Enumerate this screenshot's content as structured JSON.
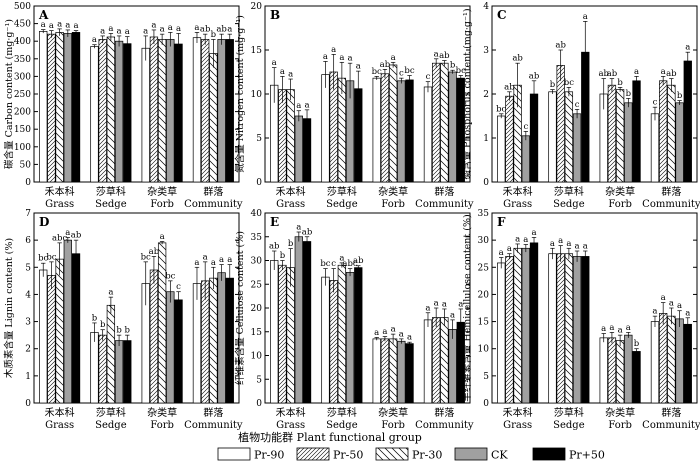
{
  "chart_data": [
    {
      "panel": "A",
      "type": "bar",
      "ylabel": "碳含量 Carbon content (mg·g⁻¹)",
      "ylim": [
        0,
        500
      ],
      "yticks": [
        0,
        50,
        100,
        150,
        200,
        250,
        300,
        350,
        400,
        450,
        500
      ],
      "categories": [
        "禾本科 Grass",
        "莎草科 Sedge",
        "杂类草 Forb",
        "群落 Community"
      ],
      "series": [
        {
          "name": "Pr-90",
          "values": [
            428,
            385,
            380,
            410
          ],
          "errors": [
            5,
            5,
            35,
            15
          ],
          "letters": [
            "a",
            "a",
            "a",
            "a"
          ]
        },
        {
          "name": "Pr-50",
          "values": [
            420,
            405,
            412,
            405
          ],
          "errors": [
            10,
            10,
            20,
            15
          ],
          "letters": [
            "a",
            "a",
            "a",
            "ab"
          ]
        },
        {
          "name": "Pr-30",
          "values": [
            425,
            412,
            405,
            365
          ],
          "errors": [
            10,
            10,
            15,
            40
          ],
          "letters": [
            "a",
            "a",
            "a",
            "b"
          ]
        },
        {
          "name": "CK",
          "values": [
            422,
            400,
            405,
            405
          ],
          "errors": [
            10,
            15,
            20,
            15
          ],
          "letters": [
            "a",
            "a",
            "a",
            "ab"
          ]
        },
        {
          "name": "Pr+50",
          "values": [
            425,
            393,
            392,
            405
          ],
          "errors": [
            5,
            20,
            30,
            15
          ],
          "letters": [
            "a",
            "a",
            "a",
            "a"
          ]
        }
      ]
    },
    {
      "panel": "B",
      "type": "bar",
      "ylabel": "氮含量 Nitrogen content (mg·g⁻¹)",
      "ylim": [
        0,
        20
      ],
      "yticks": [
        0,
        5,
        10,
        15,
        20
      ],
      "categories": [
        "禾本科 Grass",
        "莎草科 Sedge",
        "杂类草 Forb",
        "群落 Community"
      ],
      "series": [
        {
          "name": "Pr-90",
          "values": [
            11.0,
            12.2,
            11.8,
            10.8
          ],
          "errors": [
            2.0,
            1.5,
            0.2,
            0.6
          ],
          "letters": [
            "a",
            "a",
            "bc",
            "c"
          ]
        },
        {
          "name": "Pr-50",
          "values": [
            10.5,
            12.5,
            12.3,
            13.5
          ],
          "errors": [
            1.5,
            2.0,
            0.5,
            0.5
          ],
          "letters": [
            "a",
            "a",
            "ab",
            "a"
          ]
        },
        {
          "name": "Pr-30",
          "values": [
            10.5,
            11.8,
            13.3,
            13.5
          ],
          "errors": [
            1.2,
            1.8,
            0.3,
            0.3
          ],
          "letters": [
            "a",
            "a",
            "a",
            "ab"
          ]
        },
        {
          "name": "CK",
          "values": [
            7.5,
            11.5,
            11.5,
            12.5
          ],
          "errors": [
            0.6,
            2.0,
            0.3,
            0.2
          ],
          "letters": [
            "a",
            "a",
            "c",
            "b"
          ]
        },
        {
          "name": "Pr+50",
          "values": [
            7.2,
            10.6,
            11.6,
            11.8
          ],
          "errors": [
            1.0,
            2.0,
            0.5,
            0.3
          ],
          "letters": [
            "a",
            "a",
            "bc",
            "bc"
          ]
        }
      ]
    },
    {
      "panel": "C",
      "type": "bar",
      "ylabel": "磷含量 Phosphorus content (mg·g⁻¹)",
      "ylim": [
        0,
        4
      ],
      "yticks": [
        0,
        1,
        2,
        3,
        4
      ],
      "categories": [
        "禾本科 Grass",
        "莎草科 Sedge",
        "杂类草 Forb",
        "群落 Community"
      ],
      "series": [
        {
          "name": "Pr-90",
          "values": [
            1.5,
            2.05,
            2.0,
            1.55
          ],
          "errors": [
            0.05,
            0.05,
            0.35,
            0.15
          ],
          "letters": [
            "bc",
            "b",
            "ab",
            "c"
          ]
        },
        {
          "name": "Pr-50",
          "values": [
            1.95,
            2.65,
            2.2,
            2.3
          ],
          "errors": [
            0.1,
            0.35,
            0.15,
            0.1
          ],
          "letters": [
            "ab",
            "ab",
            "ab",
            "a"
          ]
        },
        {
          "name": "Pr-30",
          "values": [
            2.2,
            2.05,
            2.1,
            2.2
          ],
          "errors": [
            0.5,
            0.1,
            0.05,
            0.15
          ],
          "letters": [
            "ab",
            "bc",
            "b",
            "ab"
          ]
        },
        {
          "name": "CK",
          "values": [
            1.05,
            1.55,
            1.8,
            1.8
          ],
          "errors": [
            0.1,
            0.1,
            0.1,
            0.05
          ],
          "letters": [
            "c",
            "c",
            "b",
            "b"
          ]
        },
        {
          "name": "Pr+50",
          "values": [
            2.0,
            2.95,
            2.3,
            2.75
          ],
          "errors": [
            0.3,
            0.7,
            0.1,
            0.2
          ],
          "letters": [
            "ab",
            "a",
            "a",
            "a"
          ]
        }
      ]
    },
    {
      "panel": "D",
      "type": "bar",
      "ylabel": "木质素含量 Lignin content (%)",
      "ylim": [
        0,
        7
      ],
      "yticks": [
        0,
        1,
        2,
        3,
        4,
        5,
        6,
        7
      ],
      "categories": [
        "禾本科 Grass",
        "莎草科 Sedge",
        "杂类草 Forb",
        "群落 Community"
      ],
      "series": [
        {
          "name": "Pr-90",
          "values": [
            4.9,
            2.6,
            4.4,
            4.4
          ],
          "errors": [
            0.25,
            0.35,
            0.8,
            0.6
          ],
          "letters": [
            "bc",
            "b",
            "bc",
            "a"
          ]
        },
        {
          "name": "Pr-50",
          "values": [
            4.7,
            2.5,
            4.9,
            4.5
          ],
          "errors": [
            0.5,
            0.2,
            0.5,
            0.7
          ],
          "letters": [
            "bc",
            "b",
            "ab",
            "a"
          ]
        },
        {
          "name": "Pr-30",
          "values": [
            5.3,
            3.6,
            5.9,
            4.6
          ],
          "errors": [
            0.6,
            0.3,
            0.05,
            0.4
          ],
          "letters": [
            "abc",
            "a",
            "a",
            "a"
          ]
        },
        {
          "name": "CK",
          "values": [
            6.0,
            2.3,
            4.1,
            4.8
          ],
          "errors": [
            0.1,
            0.2,
            0.4,
            0.3
          ],
          "letters": [
            "a",
            "b",
            "bc",
            "a"
          ]
        },
        {
          "name": "Pr+50",
          "values": [
            5.5,
            2.3,
            3.8,
            4.6
          ],
          "errors": [
            0.5,
            0.2,
            0.3,
            0.5
          ],
          "letters": [
            "ab",
            "b",
            "c",
            "a"
          ]
        }
      ]
    },
    {
      "panel": "E",
      "type": "bar",
      "ylabel": "纤维素含量 Cellulose content (%)",
      "ylim": [
        0,
        40
      ],
      "yticks": [
        0,
        5,
        10,
        15,
        20,
        25,
        30,
        35,
        40
      ],
      "categories": [
        "禾本科 Grass",
        "莎草科 Sedge",
        "杂类草 Forb",
        "群落 Community"
      ],
      "series": [
        {
          "name": "Pr-90",
          "values": [
            30.0,
            26.5,
            13.5,
            17.5
          ],
          "errors": [
            2.0,
            1.8,
            0.3,
            1.5
          ],
          "letters": [
            "ab",
            "bc",
            "a",
            "a"
          ]
        },
        {
          "name": "Pr-50",
          "values": [
            29.0,
            25.8,
            13.5,
            18.0
          ],
          "errors": [
            1.0,
            2.5,
            0.5,
            2.0
          ],
          "letters": [
            "b",
            "c",
            "a",
            "a"
          ]
        },
        {
          "name": "Pr-30",
          "values": [
            28.5,
            29.0,
            13.5,
            18.0
          ],
          "errors": [
            4.0,
            0.5,
            1.0,
            1.8
          ],
          "letters": [
            "b",
            "a",
            "a",
            "a"
          ]
        },
        {
          "name": "CK",
          "values": [
            35.0,
            27.5,
            13.0,
            15.5
          ],
          "errors": [
            1.0,
            0.8,
            0.5,
            2.0
          ],
          "letters": [
            "a",
            "abc",
            "a",
            "a"
          ]
        },
        {
          "name": "Pr+50",
          "values": [
            34.0,
            28.5,
            12.5,
            17.0
          ],
          "errors": [
            1.0,
            0.4,
            0.3,
            2.8
          ],
          "letters": [
            "ab",
            "ab",
            "a",
            "a"
          ]
        }
      ]
    },
    {
      "panel": "F",
      "type": "bar",
      "ylabel": "半纤维素含量 Hemicellulose content (%)",
      "ylim": [
        0,
        35
      ],
      "yticks": [
        0,
        5,
        10,
        15,
        20,
        25,
        30,
        35
      ],
      "categories": [
        "禾本科 Grass",
        "莎草科 Sedge",
        "杂类草 Forb",
        "群落 Community"
      ],
      "series": [
        {
          "name": "Pr-90",
          "values": [
            25.8,
            27.5,
            12.0,
            15.0
          ],
          "errors": [
            1.0,
            1.0,
            0.8,
            1.0
          ],
          "letters": [
            "a",
            "a",
            "a",
            "a"
          ]
        },
        {
          "name": "Pr-50",
          "values": [
            27.0,
            27.5,
            12.0,
            16.5
          ],
          "errors": [
            0.5,
            1.5,
            1.0,
            2.0
          ],
          "letters": [
            "a",
            "a",
            "a",
            "a"
          ]
        },
        {
          "name": "Pr-30",
          "values": [
            28.5,
            27.5,
            11.5,
            16.0
          ],
          "errors": [
            0.8,
            1.0,
            1.0,
            1.5
          ],
          "letters": [
            "a",
            "a",
            "a",
            "a"
          ]
        },
        {
          "name": "CK",
          "values": [
            28.5,
            27.0,
            12.5,
            15.5
          ],
          "errors": [
            0.7,
            1.0,
            0.5,
            1.5
          ],
          "letters": [
            "a",
            "a",
            "a",
            "a"
          ]
        },
        {
          "name": "Pr+50",
          "values": [
            29.5,
            27.0,
            9.5,
            14.5
          ],
          "errors": [
            1.0,
            1.0,
            0.5,
            1.2
          ],
          "letters": [
            "a",
            "a",
            "b",
            "a"
          ]
        }
      ]
    }
  ],
  "xaxis_title": "植物功能群 Plant functional group",
  "legend": [
    {
      "name": "Pr-90",
      "pattern": "white"
    },
    {
      "name": "Pr-50",
      "pattern": "diag-fine"
    },
    {
      "name": "Pr-30",
      "pattern": "diag-coarse"
    },
    {
      "name": "CK",
      "pattern": "gray"
    },
    {
      "name": "Pr+50",
      "pattern": "black"
    }
  ],
  "colors": {
    "white": "#ffffff",
    "gray": "#a0a0a0",
    "black": "#000000",
    "stroke": "#000000"
  }
}
